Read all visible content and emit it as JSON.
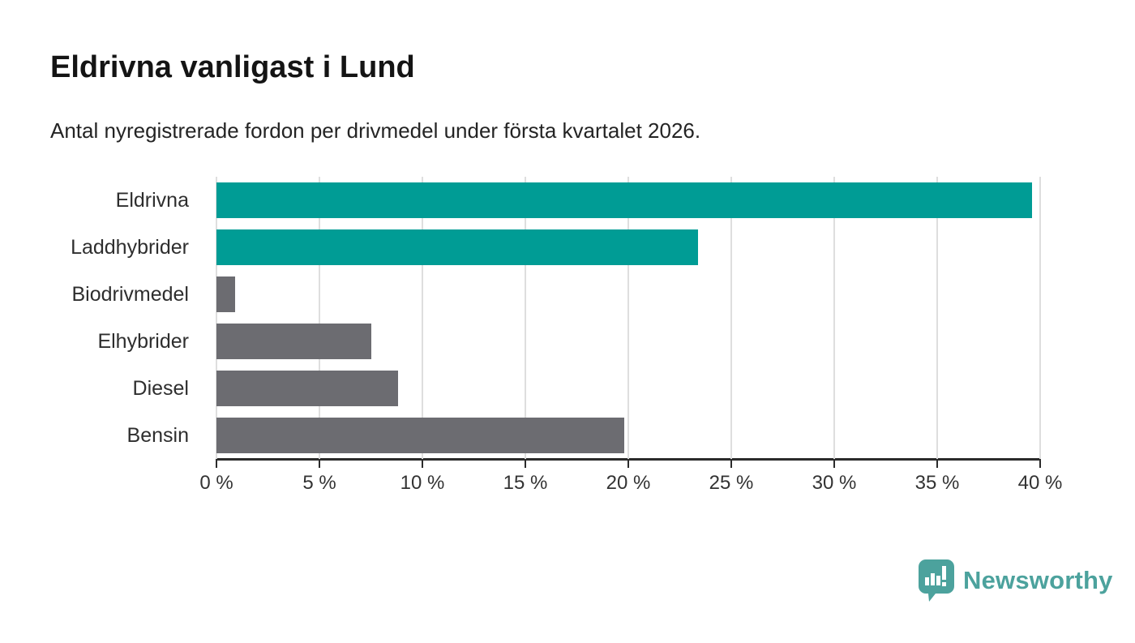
{
  "title": "Eldrivna vanligast i Lund",
  "subtitle": "Antal nyregistrerade fordon per drivmedel under första kvartalet 2026.",
  "colors": {
    "accent_teal": "#009c95",
    "muted_gray": "#6c6c71",
    "gridline": "#dedede",
    "axis": "#2b2b2b",
    "title_text": "#141414",
    "body_text": "#2e2e2e",
    "logo_teal": "#4ca29d"
  },
  "chart_data": {
    "type": "bar",
    "orientation": "horizontal",
    "title": "Eldrivna vanligast i Lund",
    "subtitle": "Antal nyregistrerade fordon per drivmedel under första kvartalet 2026.",
    "categories": [
      "Eldrivna",
      "Laddhybrider",
      "Biodrivmedel",
      "Elhybrider",
      "Diesel",
      "Bensin"
    ],
    "values": [
      39.6,
      23.4,
      0.9,
      7.5,
      8.8,
      19.8
    ],
    "unit": "%",
    "bar_colors": [
      "#009c95",
      "#009c95",
      "#6c6c71",
      "#6c6c71",
      "#6c6c71",
      "#6c6c71"
    ],
    "xlabel": "",
    "ylabel": "",
    "xlim": [
      0,
      40
    ],
    "x_tick_values": [
      0,
      5,
      10,
      15,
      20,
      25,
      30,
      35,
      40
    ],
    "x_tick_labels": [
      "0 %",
      "5 %",
      "10 %",
      "15 %",
      "20 %",
      "25 %",
      "30 %",
      "35 %",
      "40 %"
    ],
    "grid": true,
    "legend": false
  },
  "footer": {
    "brand": "Newsworthy",
    "logo_icon": "bar-chart-speech-bubble-icon"
  }
}
